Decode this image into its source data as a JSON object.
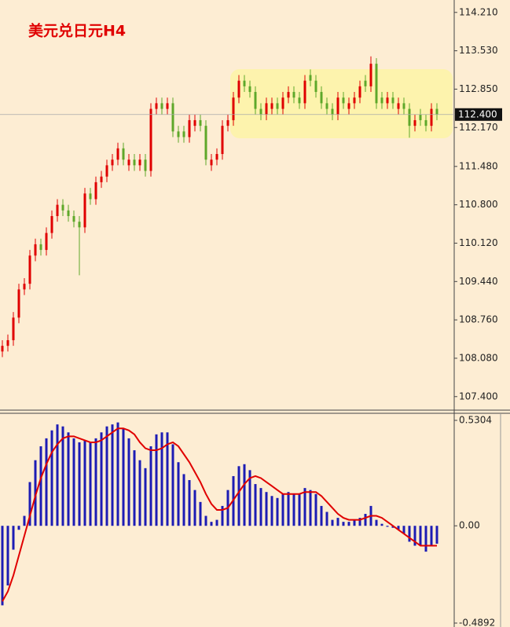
{
  "chart_data": [
    {
      "type": "candlestick",
      "title": "美元兑日元H4",
      "up_color": "#e00000",
      "down_color": "#5ea82a",
      "open": [
        108.2,
        108.3,
        108.4,
        108.8,
        109.3,
        109.4,
        109.9,
        110.1,
        110.0,
        110.3,
        110.6,
        110.8,
        110.7,
        110.6,
        110.5,
        110.4,
        111.0,
        110.9,
        111.2,
        111.3,
        111.5,
        111.6,
        111.8,
        111.5,
        111.6,
        111.5,
        111.6,
        111.4,
        112.5,
        112.6,
        112.5,
        112.6,
        112.1,
        112.1,
        112.0,
        112.2,
        112.3,
        112.2,
        111.5,
        111.6,
        111.7,
        112.2,
        112.3,
        112.7,
        113.0,
        112.9,
        112.8,
        112.5,
        112.4,
        112.5,
        112.6,
        112.5,
        112.7,
        112.8,
        112.7,
        112.6,
        113.1,
        113.0,
        112.8,
        112.6,
        112.5,
        112.4,
        112.7,
        112.5,
        112.6,
        112.7,
        113.0,
        112.9,
        113.3,
        112.7,
        112.6,
        112.7,
        112.5,
        112.6,
        112.5,
        112.2,
        112.4,
        112.3,
        112.2,
        112.5
      ],
      "high": [
        108.4,
        108.5,
        108.9,
        109.4,
        109.5,
        110.0,
        110.2,
        110.2,
        110.4,
        110.7,
        110.9,
        110.9,
        110.8,
        110.7,
        110.6,
        111.1,
        111.1,
        111.3,
        111.4,
        111.6,
        111.7,
        111.9,
        111.9,
        111.7,
        111.7,
        111.7,
        111.7,
        112.6,
        112.7,
        112.7,
        112.7,
        112.7,
        112.2,
        112.2,
        112.4,
        112.4,
        112.4,
        112.3,
        111.7,
        111.8,
        112.3,
        112.4,
        112.8,
        113.1,
        113.1,
        113.0,
        112.9,
        112.6,
        112.7,
        112.7,
        112.7,
        112.8,
        112.9,
        112.9,
        112.8,
        113.1,
        113.2,
        113.1,
        112.9,
        112.7,
        112.6,
        112.8,
        112.8,
        112.7,
        112.8,
        113.0,
        113.1,
        113.43,
        113.4,
        112.8,
        112.8,
        112.8,
        112.7,
        112.7,
        112.6,
        112.4,
        112.5,
        112.4,
        112.6,
        112.6
      ],
      "low": [
        108.1,
        108.2,
        108.3,
        108.7,
        109.2,
        109.3,
        109.8,
        109.9,
        109.9,
        110.2,
        110.5,
        110.6,
        110.5,
        110.4,
        109.55,
        110.3,
        110.8,
        110.8,
        111.1,
        111.2,
        111.4,
        111.5,
        111.5,
        111.4,
        111.4,
        111.4,
        111.3,
        111.3,
        112.4,
        112.4,
        112.4,
        112.0,
        111.9,
        111.9,
        111.9,
        112.1,
        112.1,
        111.5,
        111.4,
        111.5,
        111.6,
        112.1,
        112.2,
        112.6,
        112.8,
        112.7,
        112.4,
        112.3,
        112.3,
        112.4,
        112.4,
        112.4,
        112.6,
        112.6,
        112.5,
        112.5,
        112.9,
        112.7,
        112.5,
        112.4,
        112.3,
        112.3,
        112.5,
        112.4,
        112.5,
        112.6,
        112.8,
        112.8,
        112.5,
        112.5,
        112.5,
        112.5,
        112.4,
        112.4,
        111.99,
        112.1,
        112.2,
        112.1,
        112.1,
        112.3
      ],
      "close": [
        108.3,
        108.4,
        108.8,
        109.3,
        109.4,
        109.9,
        110.1,
        110.0,
        110.3,
        110.6,
        110.8,
        110.7,
        110.6,
        110.5,
        110.4,
        111.0,
        110.9,
        111.2,
        111.3,
        111.5,
        111.6,
        111.8,
        111.6,
        111.6,
        111.5,
        111.6,
        111.4,
        112.5,
        112.6,
        112.5,
        112.6,
        112.1,
        112.0,
        112.0,
        112.3,
        112.3,
        112.2,
        111.6,
        111.6,
        111.7,
        112.2,
        112.3,
        112.7,
        113.0,
        112.9,
        112.8,
        112.5,
        112.4,
        112.6,
        112.6,
        112.5,
        112.7,
        112.8,
        112.7,
        112.6,
        113.0,
        113.0,
        112.8,
        112.6,
        112.5,
        112.4,
        112.7,
        112.6,
        112.6,
        112.7,
        112.9,
        112.9,
        113.3,
        112.6,
        112.6,
        112.7,
        112.6,
        112.6,
        112.5,
        112.2,
        112.3,
        112.3,
        112.2,
        112.5,
        112.4
      ],
      "current_price": {
        "value": 112.4,
        "label": "112.400"
      },
      "ylim": [
        107.16,
        114.43
      ],
      "yticks": [
        {
          "value": 114.21,
          "label": "114.210"
        },
        {
          "value": 113.53,
          "label": "113.530"
        },
        {
          "value": 112.85,
          "label": "112.850"
        },
        {
          "value": 112.17,
          "label": "112.170"
        },
        {
          "value": 111.48,
          "label": "111.480"
        },
        {
          "value": 110.8,
          "label": "110.800"
        },
        {
          "value": 110.12,
          "label": "110.120"
        },
        {
          "value": 109.44,
          "label": "109.440"
        },
        {
          "value": 108.76,
          "label": "108.760"
        },
        {
          "value": 108.08,
          "label": "108.080"
        },
        {
          "value": 107.4,
          "label": "107.400"
        }
      ]
    },
    {
      "type": "macd",
      "series": [
        {
          "type": "bar",
          "color": "#1c1cb4",
          "values": [
            -0.4,
            -0.3,
            -0.12,
            -0.02,
            0.05,
            0.22,
            0.33,
            0.4,
            0.44,
            0.48,
            0.51,
            0.5,
            0.47,
            0.44,
            0.42,
            0.43,
            0.42,
            0.44,
            0.47,
            0.5,
            0.51,
            0.52,
            0.49,
            0.44,
            0.38,
            0.33,
            0.29,
            0.4,
            0.46,
            0.47,
            0.47,
            0.41,
            0.32,
            0.26,
            0.23,
            0.18,
            0.12,
            0.05,
            0.02,
            0.03,
            0.1,
            0.18,
            0.25,
            0.3,
            0.31,
            0.28,
            0.21,
            0.19,
            0.17,
            0.15,
            0.14,
            0.16,
            0.17,
            0.16,
            0.16,
            0.19,
            0.18,
            0.16,
            0.1,
            0.07,
            0.03,
            0.04,
            0.02,
            0.02,
            0.03,
            0.04,
            0.06,
            0.1,
            0.03,
            0.01,
            -0.005,
            -0.01,
            -0.02,
            -0.04,
            -0.08,
            -0.1,
            -0.1,
            -0.13,
            -0.1,
            -0.09
          ]
        },
        {
          "type": "line",
          "color": "#e00000",
          "values": [
            -0.38,
            -0.33,
            -0.25,
            -0.15,
            -0.05,
            0.05,
            0.15,
            0.24,
            0.31,
            0.37,
            0.41,
            0.44,
            0.45,
            0.45,
            0.44,
            0.43,
            0.42,
            0.42,
            0.43,
            0.45,
            0.47,
            0.49,
            0.49,
            0.48,
            0.46,
            0.42,
            0.39,
            0.38,
            0.38,
            0.39,
            0.41,
            0.42,
            0.4,
            0.36,
            0.32,
            0.27,
            0.22,
            0.16,
            0.11,
            0.08,
            0.08,
            0.09,
            0.13,
            0.17,
            0.21,
            0.24,
            0.25,
            0.24,
            0.22,
            0.2,
            0.18,
            0.16,
            0.16,
            0.16,
            0.16,
            0.17,
            0.17,
            0.17,
            0.15,
            0.12,
            0.09,
            0.06,
            0.04,
            0.03,
            0.03,
            0.03,
            0.04,
            0.05,
            0.05,
            0.04,
            0.02,
            0.0,
            -0.02,
            -0.04,
            -0.06,
            -0.08,
            -0.1,
            -0.1,
            -0.1,
            -0.1
          ]
        }
      ],
      "ylim": [
        -0.509,
        0.566
      ],
      "yticks": [
        0.5304,
        {
          "value": 0,
          "label": "0.00"
        },
        -0.4892
      ]
    }
  ]
}
